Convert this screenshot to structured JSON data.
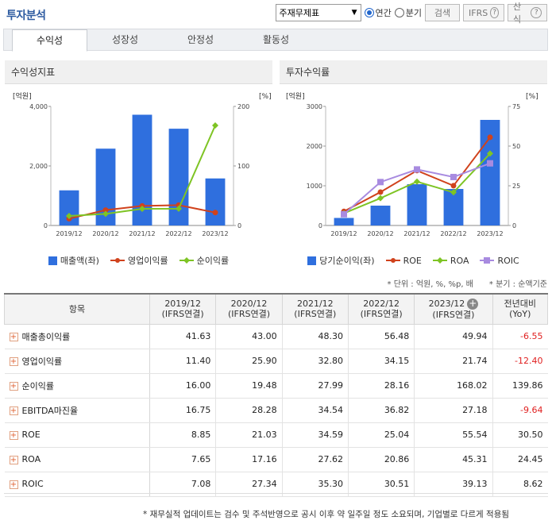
{
  "title": "투자분석",
  "controls": {
    "select_value": "주재무제표",
    "radio_annual": "연간",
    "radio_quarter": "분기",
    "search": "검색",
    "ifrs": "IFRS",
    "formula": "산식"
  },
  "tabs": [
    "수익성",
    "성장성",
    "안정성",
    "활동성"
  ],
  "left_panel": {
    "title": "수익성지표",
    "unit_left": "[억원]",
    "unit_right": "[%]",
    "legend": [
      "매출액(좌)",
      "영업이익률",
      "순이익률"
    ]
  },
  "right_panel": {
    "title": "투자수익률",
    "unit_left": "[억원]",
    "unit_right": "[%]",
    "legend": [
      "당기순이익(좌)",
      "ROE",
      "ROA",
      "ROIC"
    ]
  },
  "chart_data": [
    {
      "type": "bar",
      "title": "수익성지표",
      "categories": [
        "2019/12",
        "2020/12",
        "2021/12",
        "2022/12",
        "2023/12"
      ],
      "ylim": [
        0,
        4000
      ],
      "y2lim": [
        0,
        200
      ],
      "yticks": [
        "4,000",
        "2,000",
        "0"
      ],
      "y2ticks": [
        "200",
        "100",
        "0"
      ],
      "series": [
        {
          "name": "매출액(좌)",
          "kind": "bar",
          "axis": "left",
          "color": "#2f6fde",
          "values": [
            1180,
            2580,
            3720,
            3250,
            1580
          ]
        },
        {
          "name": "영업이익률",
          "kind": "line",
          "axis": "right",
          "color": "#d0421c",
          "values": [
            11.4,
            25.9,
            32.8,
            34.15,
            21.74
          ]
        },
        {
          "name": "순이익률",
          "kind": "line",
          "axis": "right",
          "color": "#7ec424",
          "values": [
            16.0,
            19.48,
            27.99,
            28.16,
            168.02
          ]
        }
      ]
    },
    {
      "type": "bar",
      "title": "투자수익률",
      "categories": [
        "2019/12",
        "2020/12",
        "2021/12",
        "2022/12",
        "2023/12"
      ],
      "ylim": [
        0,
        3000
      ],
      "y2lim": [
        0,
        75
      ],
      "yticks": [
        "3000",
        "2000",
        "1000",
        "0"
      ],
      "y2ticks": [
        "75",
        "50",
        "25",
        "0"
      ],
      "series": [
        {
          "name": "당기순이익(좌)",
          "kind": "bar",
          "axis": "left",
          "color": "#2f6fde",
          "values": [
            190,
            500,
            1040,
            920,
            2660
          ]
        },
        {
          "name": "ROE",
          "kind": "line",
          "axis": "right",
          "color": "#d0421c",
          "values": [
            8.85,
            21.03,
            34.59,
            25.04,
            55.54
          ]
        },
        {
          "name": "ROA",
          "kind": "line",
          "axis": "right",
          "color": "#7ec424",
          "values": [
            7.65,
            17.16,
            27.62,
            20.86,
            45.31
          ]
        },
        {
          "name": "ROIC",
          "kind": "line",
          "axis": "right",
          "color": "#a88be0",
          "values": [
            7.08,
            27.34,
            35.3,
            30.51,
            39.13
          ]
        }
      ]
    }
  ],
  "notes": {
    "unit": "* 단위 : 억원, %, %p, 배",
    "quarter": "* 분기 : 순액기준"
  },
  "table": {
    "headers": [
      {
        "l1": "항목",
        "l2": ""
      },
      {
        "l1": "2019/12",
        "l2": "(IFRS연결)"
      },
      {
        "l1": "2020/12",
        "l2": "(IFRS연결)"
      },
      {
        "l1": "2021/12",
        "l2": "(IFRS연결)"
      },
      {
        "l1": "2022/12",
        "l2": "(IFRS연결)"
      },
      {
        "l1": "2023/12",
        "l2": "(IFRS연결)"
      },
      {
        "l1": "전년대비",
        "l2": "(YoY)"
      }
    ],
    "rows": [
      {
        "label": "매출총이익률",
        "values": [
          "41.63",
          "43.00",
          "48.30",
          "56.48",
          "49.94",
          "-6.55"
        ]
      },
      {
        "label": "영업이익률",
        "values": [
          "11.40",
          "25.90",
          "32.80",
          "34.15",
          "21.74",
          "-12.40"
        ]
      },
      {
        "label": "순이익률",
        "values": [
          "16.00",
          "19.48",
          "27.99",
          "28.16",
          "168.02",
          "139.86"
        ]
      },
      {
        "label": "EBITDA마진율",
        "values": [
          "16.75",
          "28.28",
          "34.54",
          "36.82",
          "27.18",
          "-9.64"
        ]
      },
      {
        "label": "ROE",
        "values": [
          "8.85",
          "21.03",
          "34.59",
          "25.04",
          "55.54",
          "30.50"
        ]
      },
      {
        "label": "ROA",
        "values": [
          "7.65",
          "17.16",
          "27.62",
          "20.86",
          "45.31",
          "24.45"
        ]
      },
      {
        "label": "ROIC",
        "values": [
          "7.08",
          "27.34",
          "35.30",
          "30.51",
          "39.13",
          "8.62"
        ]
      }
    ]
  },
  "footnote": "* 재무실적 업데이트는 검수 및 주석반영으로 공시 이후 약 일주일 정도 소요되며, 기업별로 다르게 적용됨"
}
